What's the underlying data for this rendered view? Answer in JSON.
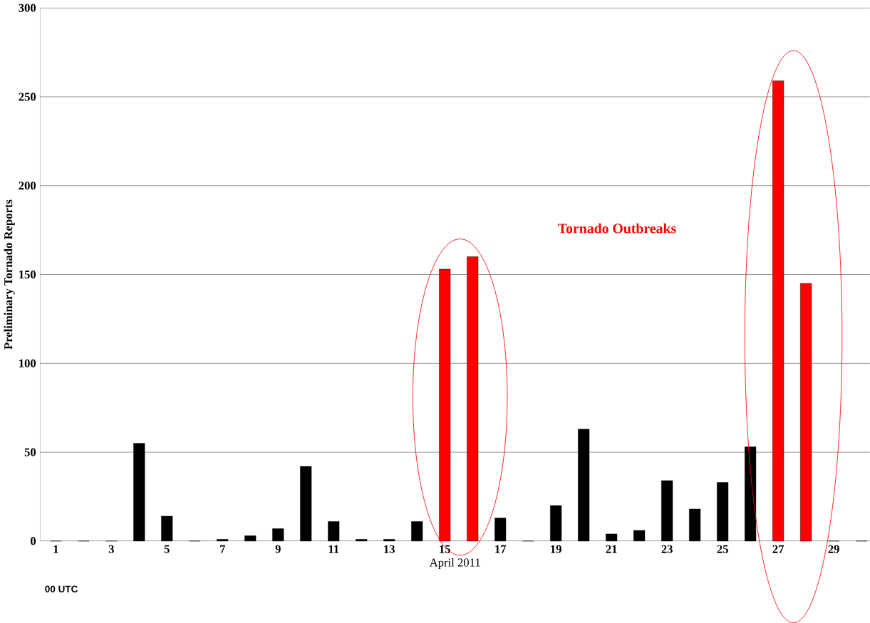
{
  "chart_data": {
    "type": "bar",
    "xlabel": "April 2011",
    "ylabel": "Preliminary Tornado Reports",
    "categories": [
      "1",
      null,
      "3",
      null,
      "5",
      null,
      "7",
      null,
      "9",
      null,
      "11",
      null,
      "13",
      null,
      "15",
      null,
      "17",
      null,
      "19",
      null,
      "21",
      null,
      "23",
      null,
      "25",
      null,
      "27",
      null,
      "29",
      null
    ],
    "values": [
      0,
      0,
      0,
      55,
      14,
      0,
      1,
      3,
      7,
      42,
      11,
      1,
      1,
      11,
      153,
      160,
      13,
      0,
      20,
      63,
      4,
      6,
      34,
      18,
      33,
      53,
      259,
      145,
      0,
      0
    ],
    "colors": [
      "#000000",
      "#000000",
      "#000000",
      "#000000",
      "#000000",
      "#000000",
      "#000000",
      "#000000",
      "#000000",
      "#000000",
      "#000000",
      "#000000",
      "#000000",
      "#000000",
      "#ff0000",
      "#ff0000",
      "#000000",
      "#000000",
      "#000000",
      "#000000",
      "#000000",
      "#000000",
      "#000000",
      "#000000",
      "#000000",
      "#000000",
      "#ff0000",
      "#ff0000",
      "#000000",
      "#000000"
    ],
    "ylim": [
      0,
      300
    ],
    "yticks": [
      0,
      50,
      100,
      150,
      200,
      250,
      300
    ],
    "grid": "y",
    "annotations": [
      "Tornado Outbreaks",
      "00 UTC"
    ]
  }
}
